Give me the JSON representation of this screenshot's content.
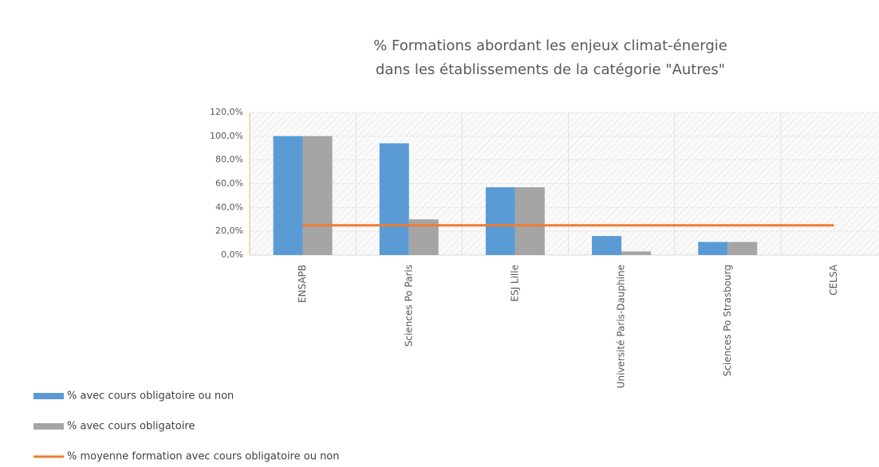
{
  "chart_data": {
    "type": "bar",
    "title": [
      "% Formations abordant les enjeux climat-énergie",
      "dans les établissements de la catégorie \"Autres\""
    ],
    "categories": [
      "ENSAPB",
      "Sciences Po Paris",
      "ESJ Lille",
      "Université Paris-Dauphine",
      "Sciences Po Strasbourg",
      "CELSA"
    ],
    "series": [
      {
        "name": "% avec cours obligatoire ou non",
        "type": "bar",
        "color": "#5b9bd5",
        "values": [
          100,
          94,
          57,
          16,
          11,
          0
        ]
      },
      {
        "name": "% avec cours obligatoire",
        "type": "bar",
        "color": "#a5a5a5",
        "values": [
          100,
          30,
          57,
          3,
          11,
          0
        ]
      },
      {
        "name": "% moyenne formation avec cours obligatoire ou non",
        "type": "line",
        "color": "#ed7d31",
        "values": [
          25,
          25,
          25,
          25,
          25,
          25
        ]
      }
    ],
    "ylim": [
      0,
      120
    ],
    "yticks": [
      {
        "value": 0,
        "label": "0,0%"
      },
      {
        "value": 20,
        "label": "20,0%"
      },
      {
        "value": 40,
        "label": "40,0%"
      },
      {
        "value": 60,
        "label": "60,0%"
      },
      {
        "value": 80,
        "label": "80,0%"
      },
      {
        "value": 100,
        "label": "100,0%"
      },
      {
        "value": 120,
        "label": "120,0%"
      }
    ],
    "grid": true,
    "legend": "bottom-left"
  }
}
